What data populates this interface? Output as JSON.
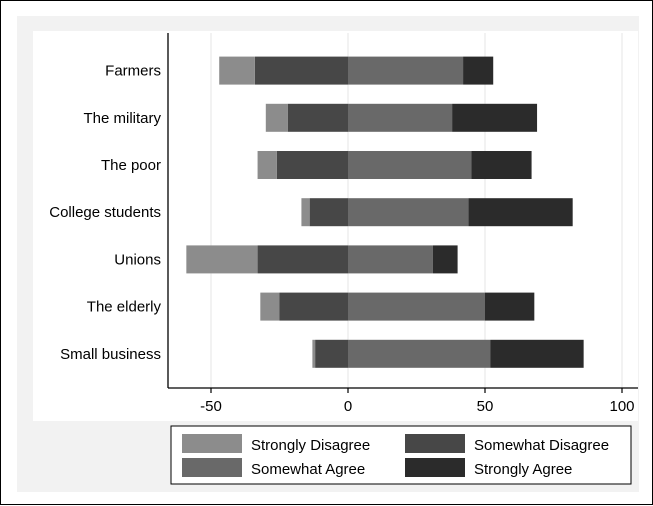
{
  "chart_data": {
    "type": "bar",
    "orientation": "horizontal",
    "stacked": "diverging",
    "categories": [
      "Farmers",
      "The military",
      "The poor",
      "College students",
      "Unions",
      "The elderly",
      "Small business"
    ],
    "xlim": [
      -65,
      105
    ],
    "xticks": [
      -50,
      0,
      50,
      100
    ],
    "xtick_labels": [
      "-50",
      "0",
      "50",
      "100"
    ],
    "grid": "vertical",
    "legend_position": "bottom",
    "series": [
      {
        "name": "Strongly Disagree",
        "color": "#8c8c8c",
        "values": [
          -13,
          -8,
          -7,
          -3,
          -26,
          -7,
          -1
        ]
      },
      {
        "name": "Somewhat Disagree",
        "color": "#474747",
        "values": [
          -34,
          -22,
          -26,
          -14,
          -33,
          -25,
          -12
        ]
      },
      {
        "name": "Somewhat Agree",
        "color": "#696969",
        "values": [
          42,
          38,
          45,
          44,
          31,
          50,
          52
        ]
      },
      {
        "name": "Strongly Agree",
        "color": "#2b2b2b",
        "values": [
          11,
          31,
          22,
          38,
          9,
          18,
          34
        ]
      }
    ]
  },
  "legend": {
    "items": [
      {
        "label": "Strongly Disagree",
        "color": "#8c8c8c"
      },
      {
        "label": "Somewhat Disagree",
        "color": "#474747"
      },
      {
        "label": "Somewhat Agree",
        "color": "#696969"
      },
      {
        "label": "Strongly Agree",
        "color": "#2b2b2b"
      }
    ]
  },
  "colors": {
    "plot_background": "#ffffff",
    "outer_background": "#f2f2f2",
    "grid": "#e6e6e6"
  }
}
